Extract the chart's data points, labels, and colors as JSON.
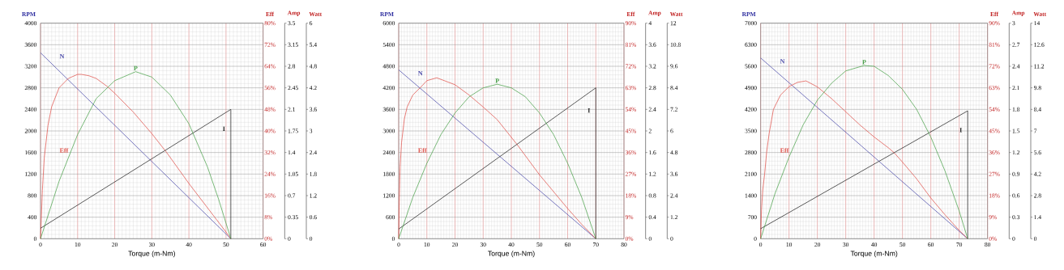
{
  "chart_data": [
    {
      "type": "line",
      "xlabel": "Torque (m-Nm)",
      "ylabel": "RPM",
      "y2label": "Eff",
      "y3label": "Amp",
      "grid": true,
      "xlim": [
        0,
        60
      ],
      "xticks": [
        0,
        10,
        20,
        30,
        40,
        50,
        60
      ],
      "ylim": [
        0,
        4000
      ],
      "yticks": [
        0,
        400,
        800,
        1200,
        1600,
        2000,
        2400,
        2800,
        3200,
        3600,
        4000
      ],
      "y2lim": [
        0,
        80
      ],
      "y2ticks": [
        {
          "value": 0,
          "label": "0%"
        },
        {
          "value": 8,
          "label": "8%"
        },
        {
          "value": 16,
          "label": "16%"
        },
        {
          "value": 24,
          "label": "24%"
        },
        {
          "value": 32,
          "label": "32%"
        },
        {
          "value": 40,
          "label": "40%"
        },
        {
          "value": 48,
          "label": "48%"
        },
        {
          "value": 56,
          "label": "56%"
        },
        {
          "value": 64,
          "label": "64%"
        },
        {
          "value": 72,
          "label": "72%"
        },
        {
          "value": 80,
          "label": "80%"
        }
      ],
      "y3lim": [
        0,
        3.5
      ],
      "y3ticks": [
        0,
        0.35,
        0.7,
        1.05,
        1.4,
        1.75,
        2.1,
        2.45,
        2.8,
        3.15,
        3.5
      ],
      "series": [
        {
          "name": "N",
          "color": "#4848a8",
          "x": [
            0,
            51.3
          ],
          "values": [
            3450,
            0
          ]
        },
        {
          "name": "Eff",
          "color": "#e05048",
          "axis": "y2",
          "x": [
            0,
            0.5,
            1,
            2,
            3,
            5,
            7.5,
            10,
            11,
            13,
            15,
            18,
            20,
            25,
            30,
            34,
            40,
            45,
            50,
            51.3
          ],
          "values": [
            0,
            18,
            30,
            42,
            49,
            56,
            59.5,
            61,
            61,
            60.5,
            59.5,
            56.5,
            54,
            47,
            39,
            32,
            20.5,
            11.5,
            2.5,
            0
          ]
        },
        {
          "name": "I",
          "color": "#202020",
          "axis": "y3",
          "x": [
            0,
            51.3,
            51.3
          ],
          "values": [
            0.17,
            2.1,
            0
          ]
        }
      ]
    },
    {
      "type": "line",
      "ylabel": "Watt",
      "tick_labels": "y",
      "xlim": [
        0,
        60
      ],
      "ylim": [
        0,
        6
      ],
      "yticks": [
        0,
        0.6,
        1.2,
        1.8,
        2.4,
        3,
        3.6,
        4.2,
        4.8,
        5.4,
        6
      ],
      "series": [
        {
          "name": "P",
          "color": "#48a048",
          "x": [
            0,
            5,
            10,
            15,
            20,
            25.65,
            30,
            35,
            40,
            45,
            48,
            51.3
          ],
          "values": [
            0,
            1.6,
            2.9,
            3.9,
            4.4,
            4.65,
            4.5,
            4.0,
            3.2,
            2.0,
            1.1,
            0
          ]
        }
      ]
    },
    {
      "type": "line",
      "xlabel": "Torque (m-Nm)",
      "ylabel": "RPM",
      "y2label": "Eff",
      "y3label": "Amp",
      "grid": true,
      "xlim": [
        0,
        80
      ],
      "xticks": [
        0,
        10,
        20,
        30,
        40,
        50,
        60,
        70,
        80
      ],
      "ylim": [
        0,
        6000
      ],
      "yticks": [
        0,
        600,
        1200,
        1800,
        2400,
        3000,
        3600,
        4200,
        4800,
        5400,
        6000
      ],
      "y2lim": [
        0,
        90
      ],
      "y2ticks": [
        {
          "value": 0,
          "label": "0%"
        },
        {
          "value": 9,
          "label": "9%"
        },
        {
          "value": 18,
          "label": "18%"
        },
        {
          "value": 27,
          "label": "27%"
        },
        {
          "value": 36,
          "label": "36%"
        },
        {
          "value": 45,
          "label": "45%"
        },
        {
          "value": 54,
          "label": "54%"
        },
        {
          "value": 63,
          "label": "63%"
        },
        {
          "value": 72,
          "label": "72%"
        },
        {
          "value": 81,
          "label": "81%"
        },
        {
          "value": 90,
          "label": "90%"
        }
      ],
      "y3lim": [
        0,
        4
      ],
      "y3ticks": [
        0,
        0.4,
        0.8,
        1.2,
        1.6,
        2,
        2.4,
        2.8,
        3.2,
        3.6,
        4
      ],
      "series": [
        {
          "name": "N",
          "color": "#4848a8",
          "x": [
            0,
            70
          ],
          "values": [
            4700,
            0
          ]
        },
        {
          "name": "Eff",
          "color": "#e05048",
          "axis": "y2",
          "x": [
            0,
            0.2,
            0.5,
            1,
            2,
            3,
            5,
            8,
            10,
            13.5,
            20,
            25,
            30,
            35,
            42,
            50,
            60,
            65,
            70
          ],
          "values": [
            0,
            15,
            30,
            40,
            50,
            55,
            60,
            63.5,
            66,
            67.2,
            64.3,
            60,
            55,
            49.7,
            39.4,
            26.7,
            12.6,
            6,
            0
          ]
        },
        {
          "name": "I",
          "color": "#202020",
          "axis": "y3",
          "x": [
            0,
            70,
            70
          ],
          "values": [
            0.18,
            2.8,
            0
          ]
        }
      ]
    },
    {
      "type": "line",
      "ylabel": "Watt",
      "tick_labels": "y",
      "xlim": [
        0,
        80
      ],
      "ylim": [
        0,
        12
      ],
      "yticks": [
        0,
        1.2,
        2.4,
        3.6,
        4.8,
        6,
        7.2,
        8.4,
        9.6,
        10.8,
        12
      ],
      "series": [
        {
          "name": "P",
          "color": "#48a048",
          "x": [
            0,
            5,
            10,
            15,
            20,
            25,
            30,
            35,
            40,
            45,
            50,
            55,
            60,
            65,
            70
          ],
          "values": [
            0,
            2.3,
            4.2,
            5.8,
            7.0,
            7.9,
            8.4,
            8.6,
            8.4,
            7.9,
            7.0,
            5.8,
            4.2,
            2.3,
            0
          ]
        }
      ]
    },
    {
      "type": "line",
      "xlabel": "Torque (m-Nm)",
      "ylabel": "RPM",
      "y2label": "Eff",
      "y3label": "Amp",
      "grid": true,
      "xlim": [
        0,
        80
      ],
      "xticks": [
        0,
        10,
        20,
        30,
        40,
        50,
        60,
        70,
        80
      ],
      "ylim": [
        0,
        7000
      ],
      "yticks": [
        0,
        700,
        1400,
        2100,
        2800,
        3500,
        4200,
        4900,
        5600,
        6300,
        7000
      ],
      "y2lim": [
        0,
        90
      ],
      "y2ticks": [
        {
          "value": 0,
          "label": "0%"
        },
        {
          "value": 9,
          "label": "9%"
        },
        {
          "value": 18,
          "label": "18%"
        },
        {
          "value": 27,
          "label": "27%"
        },
        {
          "value": 36,
          "label": "36%"
        },
        {
          "value": 45,
          "label": "45%"
        },
        {
          "value": 54,
          "label": "54%"
        },
        {
          "value": 63,
          "label": "63%"
        },
        {
          "value": 72,
          "label": "72%"
        },
        {
          "value": 81,
          "label": "81%"
        },
        {
          "value": 90,
          "label": "90%"
        }
      ],
      "y3lim": [
        0,
        3
      ],
      "y3ticks": [
        0,
        0.3,
        0.6,
        0.9,
        1.2,
        1.5,
        1.8,
        2.1,
        2.4,
        2.7,
        3
      ],
      "series": [
        {
          "name": "N",
          "color": "#4848a8",
          "x": [
            0,
            73
          ],
          "values": [
            5870,
            0
          ]
        },
        {
          "name": "Eff",
          "color": "#e05048",
          "axis": "y2",
          "x": [
            0,
            0.3,
            0.7,
            1.4,
            2.1,
            3,
            4.5,
            7,
            10,
            13,
            16,
            20,
            25,
            30,
            35,
            40,
            45,
            47,
            50,
            55,
            60,
            65,
            70,
            73
          ],
          "values": [
            0,
            12,
            20,
            27,
            36,
            44,
            54,
            60,
            63.5,
            65.3,
            65.9,
            63.4,
            58.5,
            53,
            47.5,
            42.5,
            38,
            36,
            32,
            25,
            17,
            10,
            3.5,
            0
          ]
        },
        {
          "name": "I",
          "color": "#202020",
          "axis": "y3",
          "x": [
            0,
            73,
            73
          ],
          "values": [
            0.14,
            1.78,
            0
          ]
        }
      ]
    },
    {
      "type": "line",
      "ylabel": "Watt",
      "tick_labels": "y",
      "xlim": [
        0,
        80
      ],
      "ylim": [
        0,
        14
      ],
      "yticks": [
        0,
        1.4,
        2.8,
        4.2,
        5.6,
        7,
        8.4,
        9.8,
        11.2,
        12.6,
        14
      ],
      "series": [
        {
          "name": "P",
          "color": "#48a048",
          "x": [
            0,
            5,
            10,
            15,
            20,
            25,
            30,
            36.5,
            40,
            45,
            50,
            55,
            60,
            65,
            70,
            73
          ],
          "values": [
            0,
            2.9,
            5.3,
            7.4,
            9.0,
            10.1,
            10.9,
            11.25,
            11.2,
            10.6,
            9.7,
            8.4,
            6.6,
            4.4,
            1.8,
            0
          ]
        }
      ]
    }
  ]
}
